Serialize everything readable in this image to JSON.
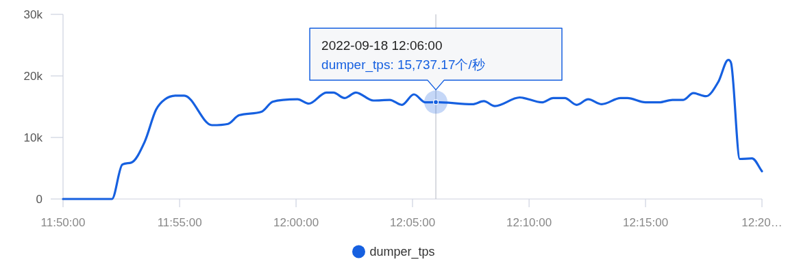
{
  "chart_data": {
    "type": "line",
    "x": [
      11.8333,
      11.8683,
      11.8757,
      11.882,
      11.8917,
      11.8998,
      11.9062,
      11.9143,
      11.92,
      11.9398,
      11.9513,
      11.9592,
      11.9755,
      11.9833,
      12.001,
      12.0092,
      12.0217,
      12.0267,
      12.0347,
      12.0428,
      12.0553,
      12.067,
      12.0757,
      12.0843,
      12.0925,
      12.1,
      12.1262,
      12.1343,
      12.1422,
      12.16,
      12.1758,
      12.184,
      12.1922,
      12.2008,
      12.209,
      12.2187,
      12.2322,
      12.237,
      12.25,
      12.2597,
      12.2693,
      12.277,
      12.2842,
      12.2933,
      12.302,
      12.3092,
      12.3112,
      12.3175,
      12.3262,
      12.3333
    ],
    "series": [
      {
        "name": "dumper_tps",
        "color": "#1660e0",
        "values": [
          0,
          0,
          5600,
          5900,
          9300,
          14500,
          16200,
          16800,
          16800,
          12000,
          12200,
          13600,
          14200,
          15800,
          16200,
          15500,
          17300,
          17300,
          16400,
          17300,
          16000,
          16100,
          15300,
          17000,
          15700,
          15737.17,
          15400,
          15900,
          15100,
          16500,
          15700,
          16400,
          16400,
          15300,
          16200,
          15400,
          16400,
          16400,
          15700,
          15700,
          16100,
          16100,
          17200,
          16700,
          19000,
          22600,
          22100,
          6500,
          6600,
          4500
        ]
      }
    ],
    "xlim": [
      11.8333,
      12.3333
    ],
    "xticks": [
      {
        "value": 11.8333,
        "label": "11:50:00"
      },
      {
        "value": 11.9167,
        "label": "11:55:00"
      },
      {
        "value": 12,
        "label": "12:00:00"
      },
      {
        "value": 12.0833,
        "label": "12:05:00"
      },
      {
        "value": 12.1667,
        "label": "12:10:00"
      },
      {
        "value": 12.25,
        "label": "12:15:00"
      },
      {
        "value": 12.3333,
        "label": "12:20…"
      }
    ],
    "ylim": [
      0,
      30000
    ],
    "yticks": [
      {
        "value": 0,
        "label": "0"
      },
      {
        "value": 10000,
        "label": "10k"
      },
      {
        "value": 20000,
        "label": "20k"
      },
      {
        "value": 30000,
        "label": "30k"
      }
    ],
    "ref_lines": [
      {
        "axis": "x",
        "value": 12.1,
        "color": "#c0c4cc"
      }
    ],
    "annotations": [
      "2022-09-18 12:06:00",
      {
        "text": "dumper_tps: 15,737.17个/秒",
        "x": 12.1,
        "y": 15737.17
      }
    ],
    "legend": "bottom",
    "grid": false,
    "marker": "none",
    "line_style": "solid"
  }
}
